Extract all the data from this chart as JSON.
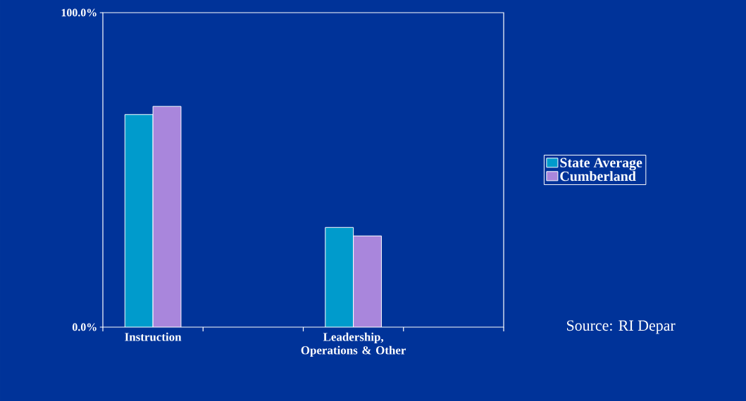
{
  "chart_data": {
    "type": "bar",
    "categories": [
      "Instruction",
      null,
      "Leadership, Operations & Other",
      null
    ],
    "series": [
      {
        "name": "State Average",
        "color": "#009bcc",
        "values": [
          67.6,
          null,
          31.7,
          null
        ]
      },
      {
        "name": "Cumberland",
        "color": "#a986dc",
        "values": [
          70.2,
          null,
          29.0,
          null
        ]
      }
    ],
    "ylim": [
      0,
      100
    ],
    "yticks": [
      {
        "value": 0,
        "label": "0.0%"
      },
      {
        "value": 100,
        "label": "100.0%"
      }
    ],
    "legend": "right",
    "annotations": [
      "Source:  RI Depar"
    ]
  }
}
